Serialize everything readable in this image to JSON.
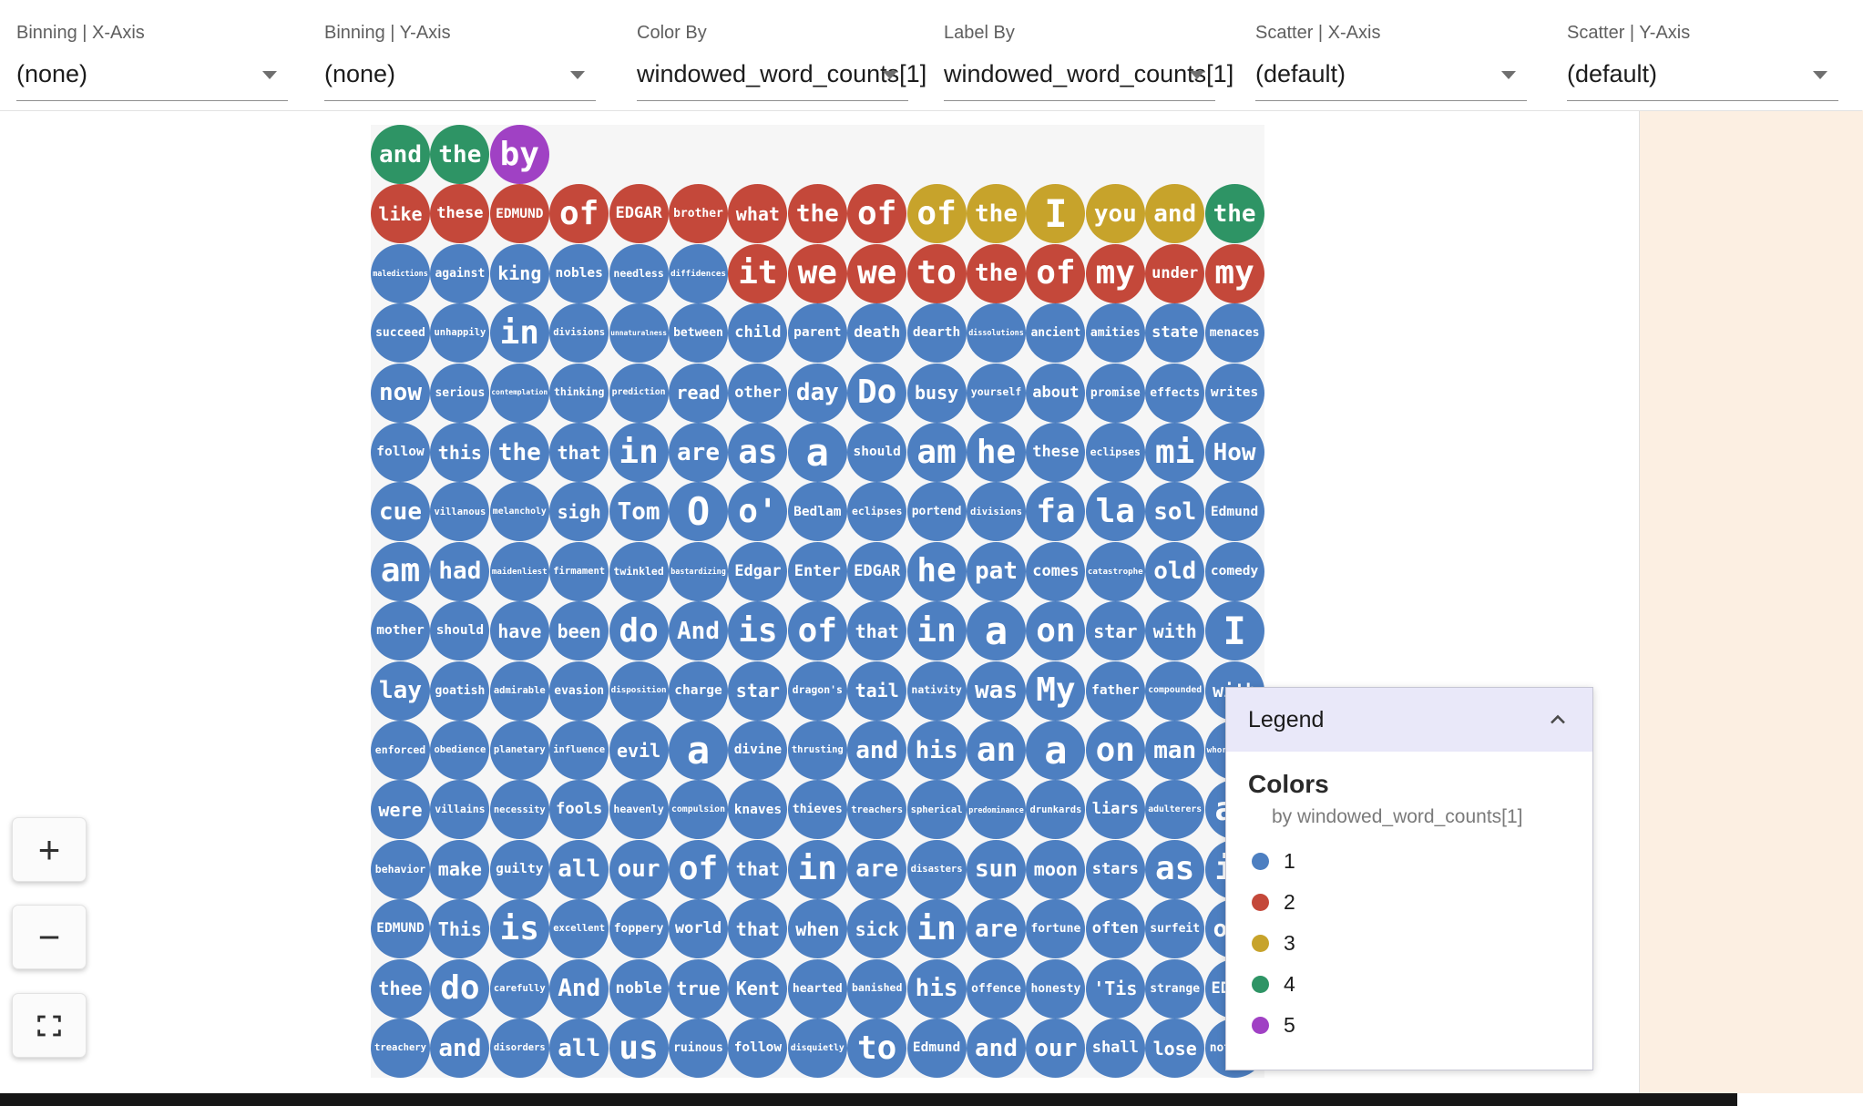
{
  "topbar": {
    "dropdowns": [
      {
        "label": "Binning | X-Axis",
        "value": "(none)"
      },
      {
        "label": "Binning | Y-Axis",
        "value": "(none)"
      },
      {
        "label": "Color By",
        "value": "windowed_word_counts[1]"
      },
      {
        "label": "Label By",
        "value": "windowed_word_counts[1]"
      },
      {
        "label": "Scatter | X-Axis",
        "value": "(default)"
      },
      {
        "label": "Scatter | Y-Axis",
        "value": "(default)"
      }
    ]
  },
  "zoom_controls": {
    "zoom_in_label": "+",
    "zoom_out_label": "−",
    "fit_icon": "fit-to-screen-icon"
  },
  "legend": {
    "title": "Legend",
    "collapse_icon": "chevron-up-icon",
    "section_title": "Colors",
    "subtitle": "by windowed_word_counts[1]",
    "entries": [
      {
        "label": "1",
        "color": "#4d7fc1"
      },
      {
        "label": "2",
        "color": "#c4483a"
      },
      {
        "label": "3",
        "color": "#c7a32b"
      },
      {
        "label": "4",
        "color": "#2e9465"
      },
      {
        "label": "5",
        "color": "#a041c4"
      }
    ]
  },
  "palette": {
    "1": "#4d7fc1",
    "2": "#c4483a",
    "3": "#c7a32b",
    "4": "#2e9465",
    "5": "#a041c4"
  },
  "grid": {
    "rows": [
      [
        [
          "and",
          4
        ],
        [
          "the",
          4
        ],
        [
          "by",
          5
        ]
      ],
      [
        [
          "like",
          2
        ],
        [
          "these",
          2
        ],
        [
          "EDMUND",
          2
        ],
        [
          "of",
          2
        ],
        [
          "EDGAR",
          2
        ],
        [
          "brother",
          2
        ],
        [
          "what",
          2
        ],
        [
          "the",
          2
        ],
        [
          "of",
          2
        ],
        [
          "of",
          3
        ],
        [
          "the",
          3
        ],
        [
          "I",
          3
        ],
        [
          "you",
          3
        ],
        [
          "and",
          3
        ],
        [
          "the",
          4
        ]
      ],
      [
        [
          "maledictions",
          1
        ],
        [
          "against",
          1
        ],
        [
          "king",
          1
        ],
        [
          "nobles",
          1
        ],
        [
          "needless",
          1
        ],
        [
          "diffidences",
          1
        ],
        [
          "it",
          2
        ],
        [
          "we",
          2
        ],
        [
          "we",
          2
        ],
        [
          "to",
          2
        ],
        [
          "the",
          2
        ],
        [
          "of",
          2
        ],
        [
          "my",
          2
        ],
        [
          "under",
          2
        ],
        [
          "my",
          2
        ]
      ],
      [
        [
          "succeed",
          1
        ],
        [
          "unhappily",
          1
        ],
        [
          "in",
          1
        ],
        [
          "divisions",
          1
        ],
        [
          "unnaturalness",
          1
        ],
        [
          "between",
          1
        ],
        [
          "child",
          1
        ],
        [
          "parent",
          1
        ],
        [
          "death",
          1
        ],
        [
          "dearth",
          1
        ],
        [
          "dissolutions",
          1
        ],
        [
          "ancient",
          1
        ],
        [
          "amities",
          1
        ],
        [
          "state",
          1
        ],
        [
          "menaces",
          1
        ]
      ],
      [
        [
          "now",
          1
        ],
        [
          "serious",
          1
        ],
        [
          "contemplation",
          1
        ],
        [
          "thinking",
          1
        ],
        [
          "prediction",
          1
        ],
        [
          "read",
          1
        ],
        [
          "other",
          1
        ],
        [
          "day",
          1
        ],
        [
          "Do",
          1
        ],
        [
          "busy",
          1
        ],
        [
          "yourself",
          1
        ],
        [
          "about",
          1
        ],
        [
          "promise",
          1
        ],
        [
          "effects",
          1
        ],
        [
          "writes",
          1
        ]
      ],
      [
        [
          "follow",
          1
        ],
        [
          "this",
          1
        ],
        [
          "the",
          1
        ],
        [
          "that",
          1
        ],
        [
          "in",
          1
        ],
        [
          "are",
          1
        ],
        [
          "as",
          1
        ],
        [
          "a",
          1
        ],
        [
          "should",
          1
        ],
        [
          "am",
          1
        ],
        [
          "he",
          1
        ],
        [
          "these",
          1
        ],
        [
          "eclipses",
          1
        ],
        [
          "mi",
          1
        ],
        [
          "How",
          1
        ]
      ],
      [
        [
          "cue",
          1
        ],
        [
          "villanous",
          1
        ],
        [
          "melancholy",
          1
        ],
        [
          "sigh",
          1
        ],
        [
          "Tom",
          1
        ],
        [
          "O",
          1
        ],
        [
          "o'",
          1
        ],
        [
          "Bedlam",
          1
        ],
        [
          "eclipses",
          1
        ],
        [
          "portend",
          1
        ],
        [
          "divisions",
          1
        ],
        [
          "fa",
          1
        ],
        [
          "la",
          1
        ],
        [
          "sol",
          1
        ],
        [
          "Edmund",
          1
        ]
      ],
      [
        [
          "am",
          1
        ],
        [
          "had",
          1
        ],
        [
          "maidenliest",
          1
        ],
        [
          "firmament",
          1
        ],
        [
          "twinkled",
          1
        ],
        [
          "bastardizing",
          1
        ],
        [
          "Edgar",
          1
        ],
        [
          "Enter",
          1
        ],
        [
          "EDGAR",
          1
        ],
        [
          "he",
          1
        ],
        [
          "pat",
          1
        ],
        [
          "comes",
          1
        ],
        [
          "catastrophe",
          1
        ],
        [
          "old",
          1
        ],
        [
          "comedy",
          1
        ]
      ],
      [
        [
          "mother",
          1
        ],
        [
          "should",
          1
        ],
        [
          "have",
          1
        ],
        [
          "been",
          1
        ],
        [
          "do",
          1
        ],
        [
          "And",
          1
        ],
        [
          "is",
          1
        ],
        [
          "of",
          1
        ],
        [
          "that",
          1
        ],
        [
          "in",
          1
        ],
        [
          "a",
          1
        ],
        [
          "on",
          1
        ],
        [
          "star",
          1
        ],
        [
          "with",
          1
        ],
        [
          "I",
          1
        ]
      ],
      [
        [
          "lay",
          1
        ],
        [
          "goatish",
          1
        ],
        [
          "admirable",
          1
        ],
        [
          "evasion",
          1
        ],
        [
          "disposition",
          1
        ],
        [
          "charge",
          1
        ],
        [
          "star",
          1
        ],
        [
          "dragon's",
          1
        ],
        [
          "tail",
          1
        ],
        [
          "nativity",
          1
        ],
        [
          "was",
          1
        ],
        [
          "My",
          1
        ],
        [
          "father",
          1
        ],
        [
          "compounded",
          1
        ],
        [
          "with",
          1
        ]
      ],
      [
        [
          "enforced",
          1
        ],
        [
          "obedience",
          1
        ],
        [
          "planetary",
          1
        ],
        [
          "influence",
          1
        ],
        [
          "evil",
          1
        ],
        [
          "a",
          1
        ],
        [
          "divine",
          1
        ],
        [
          "thrusting",
          1
        ],
        [
          "and",
          1
        ],
        [
          "his",
          1
        ],
        [
          "an",
          1
        ],
        [
          "a",
          1
        ],
        [
          "on",
          1
        ],
        [
          "man",
          1
        ],
        [
          "whoremaster",
          1
        ]
      ],
      [
        [
          "were",
          1
        ],
        [
          "villains",
          1
        ],
        [
          "necessity",
          1
        ],
        [
          "fools",
          1
        ],
        [
          "heavenly",
          1
        ],
        [
          "compulsion",
          1
        ],
        [
          "knaves",
          1
        ],
        [
          "thieves",
          1
        ],
        [
          "treachers",
          1
        ],
        [
          "spherical",
          1
        ],
        [
          "predominance",
          1
        ],
        [
          "drunkards",
          1
        ],
        [
          "liars",
          1
        ],
        [
          "adulterers",
          1
        ],
        [
          "an",
          1
        ]
      ],
      [
        [
          "behavior",
          1
        ],
        [
          "make",
          1
        ],
        [
          "guilty",
          1
        ],
        [
          "all",
          1
        ],
        [
          "our",
          1
        ],
        [
          "of",
          1
        ],
        [
          "that",
          1
        ],
        [
          "in",
          1
        ],
        [
          "are",
          1
        ],
        [
          "disasters",
          1
        ],
        [
          "sun",
          1
        ],
        [
          "moon",
          1
        ],
        [
          "stars",
          1
        ],
        [
          "as",
          1
        ],
        [
          "if",
          1
        ]
      ],
      [
        [
          "EDMUND",
          1
        ],
        [
          "This",
          1
        ],
        [
          "is",
          1
        ],
        [
          "excellent",
          1
        ],
        [
          "foppery",
          1
        ],
        [
          "world",
          1
        ],
        [
          "that",
          1
        ],
        [
          "when",
          1
        ],
        [
          "sick",
          1
        ],
        [
          "in",
          1
        ],
        [
          "are",
          1
        ],
        [
          "fortune",
          1
        ],
        [
          "often",
          1
        ],
        [
          "surfeit",
          1
        ],
        [
          "own",
          1
        ]
      ],
      [
        [
          "thee",
          1
        ],
        [
          "do",
          1
        ],
        [
          "carefully",
          1
        ],
        [
          "And",
          1
        ],
        [
          "noble",
          1
        ],
        [
          "true",
          1
        ],
        [
          "Kent",
          1
        ],
        [
          "hearted",
          1
        ],
        [
          "banished",
          1
        ],
        [
          "his",
          1
        ],
        [
          "offence",
          1
        ],
        [
          "honesty",
          1
        ],
        [
          "'Tis",
          1
        ],
        [
          "strange",
          1
        ],
        [
          "EDGAR",
          1
        ]
      ],
      [
        [
          "treachery",
          1
        ],
        [
          "and",
          1
        ],
        [
          "disorders",
          1
        ],
        [
          "all",
          1
        ],
        [
          "us",
          1
        ],
        [
          "ruinous",
          1
        ],
        [
          "follow",
          1
        ],
        [
          "disquietly",
          1
        ],
        [
          "to",
          1
        ],
        [
          "Edmund",
          1
        ],
        [
          "and",
          1
        ],
        [
          "our",
          1
        ],
        [
          "shall",
          1
        ],
        [
          "lose",
          1
        ],
        [
          "nothing",
          1
        ]
      ]
    ]
  }
}
